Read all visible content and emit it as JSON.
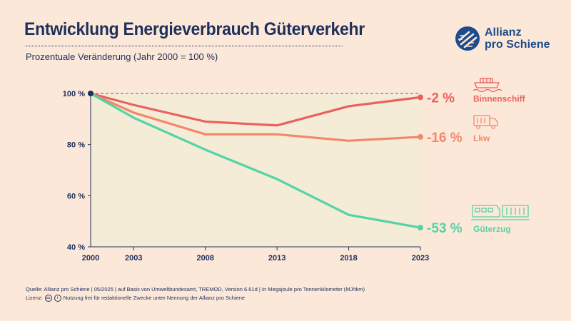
{
  "header": {
    "title": "Entwicklung Energieverbrauch Güterverkehr",
    "subtitle": "Prozentuale Veränderung (Jahr 2000 = 100 %)"
  },
  "logo": {
    "line1": "Allianz",
    "line2": "pro Schiene"
  },
  "colors": {
    "background": "#fce8d8",
    "plot_area": "#f4ecd6",
    "navy": "#1f2f5c",
    "binnenschiff": "#e9625e",
    "lkw": "#f2876a",
    "gueterzug": "#54d3a8"
  },
  "chart_data": {
    "type": "line",
    "title": "Entwicklung Energieverbrauch Güterverkehr",
    "ylabel": "Prozentuale Veränderung (Jahr 2000 = 100 %)",
    "xlabel": "",
    "x": [
      2000,
      2003,
      2008,
      2013,
      2018,
      2023
    ],
    "xticks": [
      "2000",
      "2003",
      "2008",
      "2013",
      "2018",
      "2023"
    ],
    "yticks": [
      "100 %",
      "80 %",
      "60 %",
      "40 %"
    ],
    "ylim": [
      40,
      100
    ],
    "xlim": [
      2000,
      2023
    ],
    "grid": false,
    "series": [
      {
        "key": "binnenschiff",
        "name": "Binnenschiff",
        "change_label": "-2 %",
        "values": [
          100,
          95.5,
          89,
          87.5,
          95,
          98.5
        ]
      },
      {
        "key": "lkw",
        "name": "Lkw",
        "change_label": "-16 %",
        "values": [
          100,
          92.5,
          84,
          84,
          81.5,
          83
        ]
      },
      {
        "key": "gueterzug",
        "name": "Güterzug",
        "change_label": "-53 %",
        "values": [
          100,
          90.5,
          78,
          66.5,
          52.5,
          47.5
        ]
      }
    ]
  },
  "footer": {
    "source": "Quelle: Allianz pro Schiene | 05/2025 | auf Basis von Umweltbundesamt, TREMOD, Version 6.61d | In Megajoule pro Tonnenkilometer (MJ/tkm)",
    "license_label": "Lizenz:",
    "cc_icon": "cc",
    "by_icon": "i",
    "license_text": "Nutzung frei für redaktionelle Zwecke unter Nennung der Allianz pro Schiene"
  }
}
